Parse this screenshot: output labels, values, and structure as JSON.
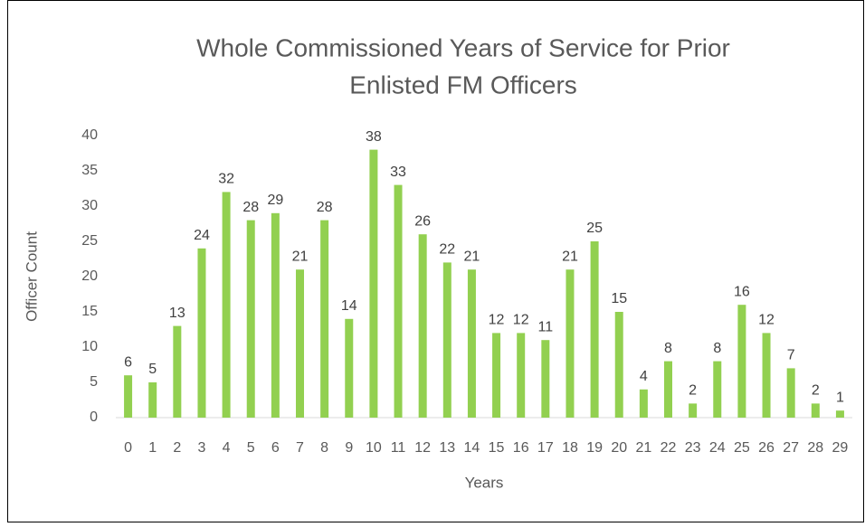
{
  "chart_data": {
    "type": "bar",
    "title": [
      "Whole Commissioned Years of Service for Prior",
      "Enlisted FM Officers"
    ],
    "x_label": "Years",
    "y_label": "Officer Count",
    "categories": [
      "0",
      "1",
      "2",
      "3",
      "4",
      "5",
      "6",
      "7",
      "8",
      "9",
      "10",
      "11",
      "12",
      "13",
      "14",
      "15",
      "16",
      "17",
      "18",
      "19",
      "20",
      "21",
      "22",
      "23",
      "24",
      "25",
      "26",
      "27",
      "28",
      "29"
    ],
    "values": [
      6,
      5,
      13,
      24,
      32,
      28,
      29,
      21,
      28,
      14,
      38,
      33,
      26,
      22,
      21,
      12,
      12,
      11,
      21,
      25,
      15,
      4,
      8,
      2,
      8,
      16,
      12,
      7,
      2,
      1
    ],
    "color": "#92d050",
    "ylim": [
      0,
      40
    ],
    "yticks": [
      0,
      5,
      10,
      15,
      20,
      25,
      30,
      35,
      40
    ],
    "grid": false
  }
}
